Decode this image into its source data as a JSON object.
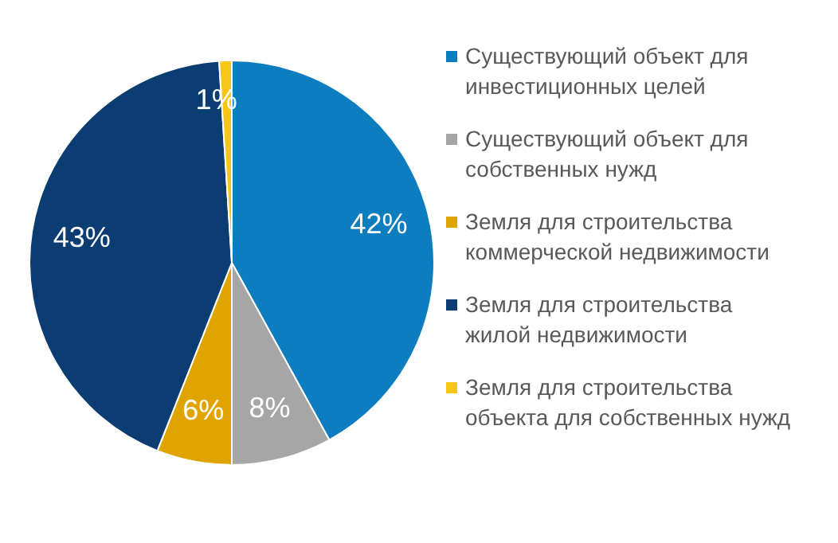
{
  "chart_data": {
    "type": "pie",
    "categories": [
      "Существующий объект для инвестиционных целей",
      "Существующий объект для собственных нужд",
      "Земля для строительства коммерческой  недвижимости",
      "Земля для строительства жилой недвижимости",
      "Земля для строительства объекта для собственных нужд"
    ],
    "values": [
      42,
      8,
      6,
      43,
      1
    ],
    "colors": [
      "#0c7ec0",
      "#a6a6a6",
      "#e0a400",
      "#0b3d72",
      "#f5c518"
    ],
    "value_labels": [
      "42%",
      "8%",
      "6%",
      "43%",
      "1%"
    ],
    "legend": "right"
  }
}
